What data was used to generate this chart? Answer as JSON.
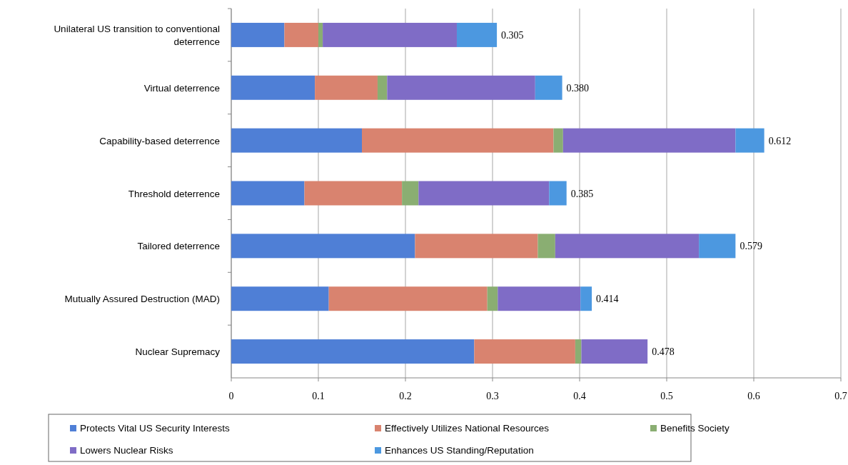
{
  "chart_data": {
    "type": "bar",
    "orientation": "horizontal",
    "stacked": true,
    "categories": [
      "Unilateral US transition to conventional deterrence",
      "Virtual deterrence",
      "Capability-based deterrence",
      "Threshold deterrence",
      "Tailored deterrence",
      "Mutually Assured Destruction (MAD)",
      "Nuclear Supremacy"
    ],
    "series": [
      {
        "name": "Protects Vital US Security Interests",
        "color": "#4f7fd6",
        "values": [
          0.061,
          0.096,
          0.15,
          0.084,
          0.211,
          0.112,
          0.279
        ]
      },
      {
        "name": "Effectively Utilizes National Resources",
        "color": "#d9836f",
        "values": [
          0.039,
          0.072,
          0.22,
          0.112,
          0.141,
          0.182,
          0.116
        ]
      },
      {
        "name": "Benefits Society",
        "color": "#8aae72",
        "values": [
          0.005,
          0.011,
          0.011,
          0.019,
          0.02,
          0.012,
          0.007
        ]
      },
      {
        "name": "Lowers Nuclear Risks",
        "color": "#7f6cc6",
        "values": [
          0.154,
          0.17,
          0.198,
          0.15,
          0.165,
          0.095,
          0.076
        ]
      },
      {
        "name": "Enhances US Standing/Reputation",
        "color": "#4c98e0",
        "values": [
          0.046,
          0.031,
          0.033,
          0.02,
          0.042,
          0.013,
          0
        ]
      }
    ],
    "totals": [
      "0.305",
      "0.380",
      "0.612",
      "0.385",
      "0.579",
      "0.414",
      "0.478"
    ],
    "xlim": [
      0,
      0.7
    ],
    "xticks": [
      0,
      0.1,
      0.2,
      0.3,
      0.4,
      0.5,
      0.6,
      0.7
    ],
    "grid": "x",
    "legend": "bottom"
  }
}
